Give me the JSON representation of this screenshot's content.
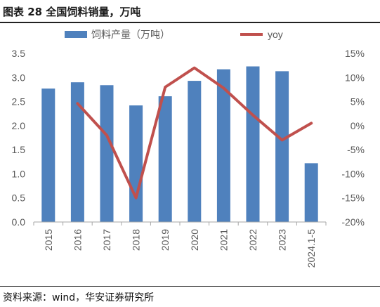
{
  "figure_title": "图表 28 全国饲料销量，万吨",
  "source_note": "资料来源：wind，华安证券研究所",
  "colors": {
    "bar": "#4f81bd",
    "line": "#c0504d",
    "axis": "#a6a6a6",
    "text": "#595959"
  },
  "chart_data": {
    "type": "bar",
    "categories": [
      "2015",
      "2016",
      "2017",
      "2018",
      "2019",
      "2020",
      "2021",
      "2022",
      "2023",
      "2024.1-5"
    ],
    "series": [
      {
        "name": "饲料产量（万吨）",
        "type": "bar",
        "axis": "left",
        "values": [
          2.77,
          2.9,
          2.84,
          2.42,
          2.61,
          2.93,
          3.17,
          3.23,
          3.13,
          1.22
        ]
      },
      {
        "name": "yoy",
        "type": "line",
        "axis": "right",
        "values": [
          null,
          4.6,
          -2.0,
          -15.0,
          8.0,
          12.0,
          7.8,
          2.2,
          -3.0,
          0.5
        ]
      }
    ],
    "y_left": {
      "min": 0,
      "max": 3.5,
      "ticks": [
        "0.0",
        "0.5",
        "1.0",
        "1.5",
        "2.0",
        "2.5",
        "3.0",
        "3.5"
      ]
    },
    "y_right": {
      "min": -20,
      "max": 15,
      "ticks": [
        "-20%",
        "-15%",
        "-10%",
        "-5%",
        "0%",
        "5%",
        "10%",
        "15%"
      ]
    },
    "legend_position": "top",
    "grid": false
  }
}
